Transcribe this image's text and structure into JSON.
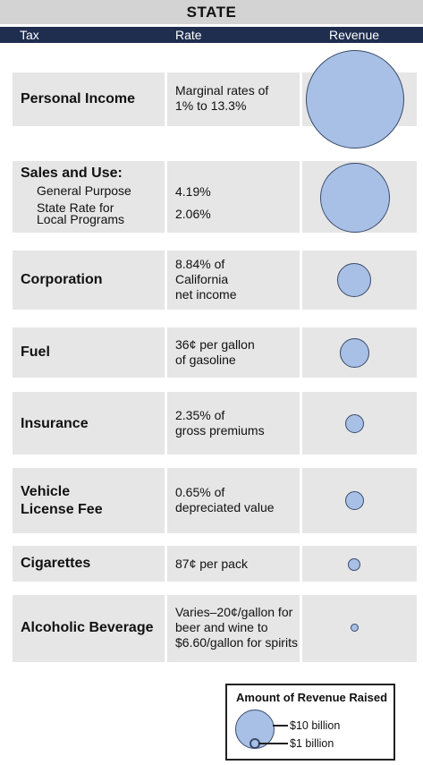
{
  "title": "STATE",
  "columns": {
    "tax": "Tax",
    "rate": "Rate",
    "revenue": "Revenue"
  },
  "rows": [
    {
      "tax": "Personal Income",
      "rate": "Marginal rates of\n1% to 13.3%"
    },
    {
      "tax": "Sales and Use:",
      "sub1": "General Purpose",
      "sub2": "State Rate for\nLocal Programs",
      "rate1": "4.19%",
      "rate2": "2.06%"
    },
    {
      "tax": "Corporation",
      "rate": "8.84% of\nCalifornia\nnet income"
    },
    {
      "tax": "Fuel",
      "rate": "36¢ per gallon\nof gasoline"
    },
    {
      "tax": "Insurance",
      "rate": "2.35% of\ngross premiums"
    },
    {
      "tax": "Vehicle\nLicense Fee",
      "rate": "0.65% of\ndepreciated value"
    },
    {
      "tax": "Cigarettes",
      "rate": "87¢ per pack"
    },
    {
      "tax": "Alcoholic Beverage",
      "rate": "Varies–20¢/gallon for\nbeer and wine to\n$6.60/gallon for spirits"
    }
  ],
  "legend": {
    "title": "Amount of Revenue Raised",
    "large": "$10 billion",
    "small": "$1 billion"
  },
  "colors": {
    "bubble": "#a8c0e6",
    "header": "#1f2e4f",
    "row": "#e6e6e6"
  }
}
